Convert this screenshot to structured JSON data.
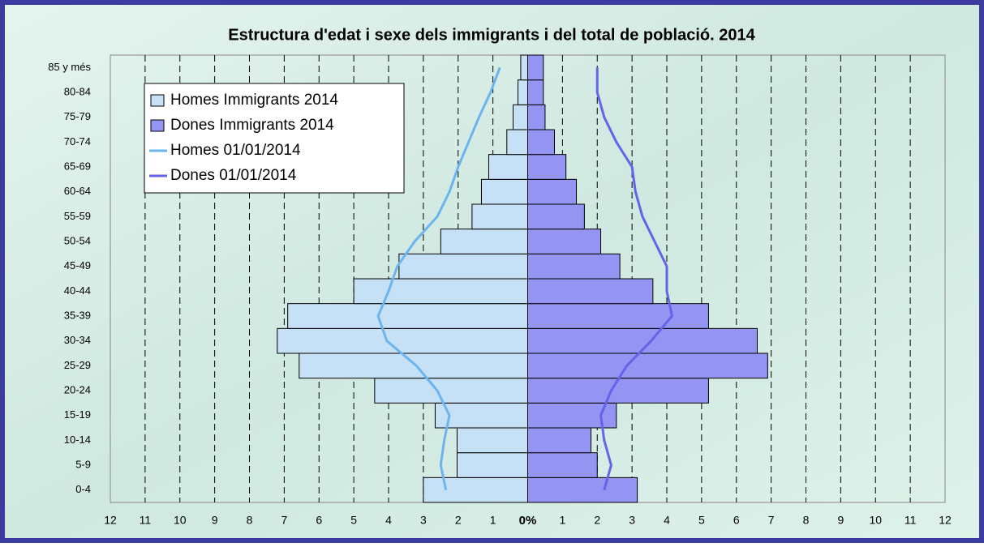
{
  "chart_data": {
    "type": "bar",
    "title": "Estructura d'edat i sexe dels immigrants i del total de població. 2014",
    "categories": [
      "0-4",
      "5-9",
      "10-14",
      "15-19",
      "20-24",
      "25-29",
      "30-34",
      "35-39",
      "40-44",
      "45-49",
      "50-54",
      "55-59",
      "60-64",
      "65-69",
      "70-74",
      "75-79",
      "80-84",
      "85 y més"
    ],
    "series": [
      {
        "name": "Homes Immigrants 2014",
        "type": "bar",
        "side": "left",
        "color": "#c6e0f6",
        "values": [
          3.0,
          2.03,
          2.03,
          2.66,
          4.4,
          6.57,
          7.2,
          6.9,
          5.0,
          3.7,
          2.5,
          1.6,
          1.33,
          1.12,
          0.6,
          0.42,
          0.28,
          0.2
        ]
      },
      {
        "name": "Dones Immigrants 2014",
        "type": "bar",
        "side": "right",
        "color": "#9494f2",
        "values": [
          3.15,
          2.0,
          1.82,
          2.55,
          5.2,
          6.9,
          6.6,
          5.2,
          3.6,
          2.65,
          2.1,
          1.63,
          1.4,
          1.1,
          0.77,
          0.5,
          0.45,
          0.45
        ]
      },
      {
        "name": "Homes 01/01/2014",
        "type": "line",
        "side": "left",
        "color": "#6cb4f0",
        "values": [
          2.35,
          2.5,
          2.4,
          2.25,
          2.6,
          3.2,
          4.05,
          4.3,
          4.0,
          3.75,
          3.25,
          2.6,
          2.25,
          2.0,
          1.7,
          1.4,
          1.07,
          0.8
        ]
      },
      {
        "name": "Dones 01/01/2014",
        "type": "line",
        "side": "right",
        "color": "#6464ea",
        "values": [
          2.2,
          2.4,
          2.2,
          2.1,
          2.4,
          2.85,
          3.55,
          4.15,
          4.0,
          4.0,
          3.65,
          3.3,
          3.1,
          3.0,
          2.55,
          2.2,
          2.0,
          2.0
        ]
      }
    ],
    "xlim": [
      -12,
      12
    ],
    "xticks": [
      {
        "value": -12,
        "label": "12"
      },
      {
        "value": -11,
        "label": "11"
      },
      {
        "value": -10,
        "label": "10"
      },
      {
        "value": -9,
        "label": "9"
      },
      {
        "value": -8,
        "label": "8"
      },
      {
        "value": -7,
        "label": "7"
      },
      {
        "value": -6,
        "label": "6"
      },
      {
        "value": -5,
        "label": "5"
      },
      {
        "value": -4,
        "label": "4"
      },
      {
        "value": -3,
        "label": "3"
      },
      {
        "value": -2,
        "label": "2"
      },
      {
        "value": -1,
        "label": "1"
      },
      {
        "value": 0,
        "label": "0%"
      },
      1,
      2,
      3,
      4,
      5,
      6,
      7,
      8,
      9,
      10,
      11,
      12
    ],
    "grid": true
  }
}
